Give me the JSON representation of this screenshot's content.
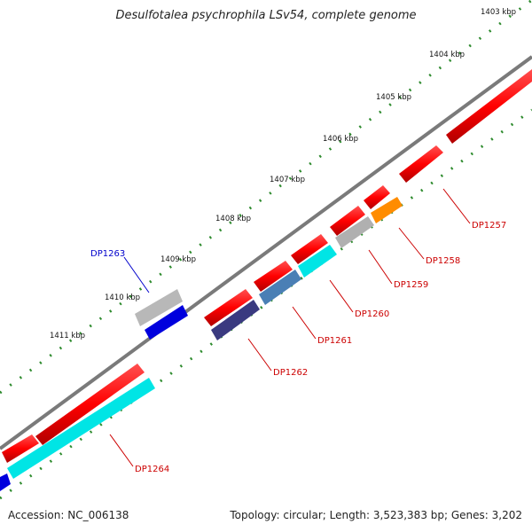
{
  "title": "Desulfotalea psychrophila LSv54, complete genome",
  "accession": "Accession: NC_006138",
  "summary": "Topology: circular; Length: 3,523,383 bp; Genes: 3,202",
  "colors": {
    "backbone": "#7a7a7a",
    "tick_dots": "#2e8b2e",
    "label_red": "#cc0000",
    "label_blue": "#0000cc"
  },
  "scale_ticks": [
    {
      "label": "1403 kbp"
    },
    {
      "label": "1404 kbp"
    },
    {
      "label": "1405 kbp"
    },
    {
      "label": "1406 kbp"
    },
    {
      "label": "1407 kbp"
    },
    {
      "label": "1408 kbp"
    },
    {
      "label": "1409 kbp"
    },
    {
      "label": "1410 kbp"
    },
    {
      "label": "1411 kbp"
    }
  ],
  "genes": [
    {
      "id": "DP1257",
      "color": "#ff0000"
    },
    {
      "id": "DP1258",
      "color": "#ff8c00"
    },
    {
      "id": "DP1259",
      "color": "#b0b0b0"
    },
    {
      "id": "DP1260",
      "color": "#00e5e5"
    },
    {
      "id": "DP1261",
      "color": "#4a7fb5"
    },
    {
      "id": "DP1262",
      "color": "#3a3a80"
    },
    {
      "id": "DP1263",
      "color": "#b8b8b8"
    },
    {
      "id": "DP1264",
      "color": "#00e5e5"
    }
  ]
}
